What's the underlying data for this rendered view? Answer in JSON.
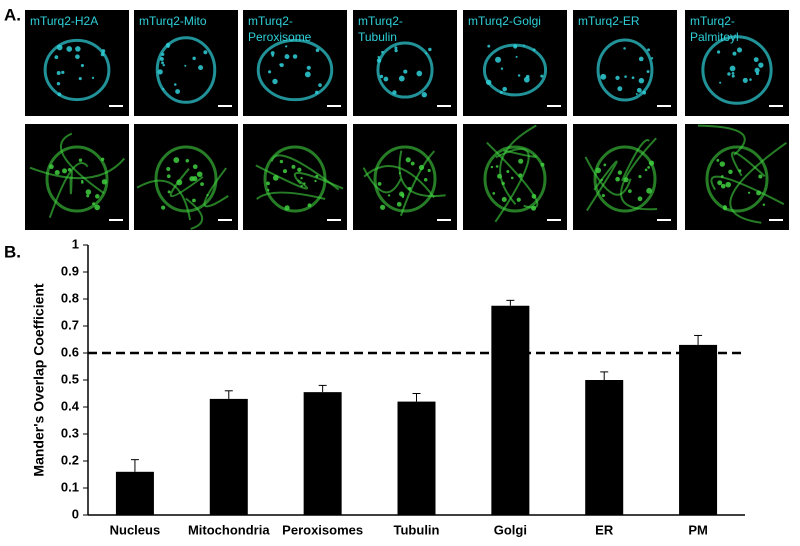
{
  "panel_a_label": "A.",
  "panel_b_label": "B.",
  "images": [
    {
      "label": [
        "mTurq2-H2A"
      ]
    },
    {
      "label": [
        "mTurq2-Mito"
      ]
    },
    {
      "label": [
        "mTurq2-",
        "Peroxisome"
      ]
    },
    {
      "label": [
        "mTurq2-",
        "Tubulin"
      ]
    },
    {
      "label": [
        "mTurq2-Golgi"
      ]
    },
    {
      "label": [
        "mTurq2-ER"
      ]
    },
    {
      "label": [
        "mTurq2-",
        "Palmitoyl"
      ]
    }
  ],
  "chart_data": {
    "type": "bar",
    "ylabel": "Mander's Overlap Coefficient",
    "categories": [
      "Nucleus",
      "Mitochondria",
      "Peroxisomes",
      "Tubulin",
      "Golgi",
      "ER",
      "PM"
    ],
    "values": [
      0.16,
      0.43,
      0.455,
      0.42,
      0.775,
      0.5,
      0.63
    ],
    "errors": [
      0.045,
      0.03,
      0.025,
      0.03,
      0.02,
      0.03,
      0.035
    ],
    "color": "#000000",
    "threshold": 0.6,
    "ylim": [
      0,
      1
    ],
    "yticks": [
      0,
      0.1,
      0.2,
      0.3,
      0.4,
      0.5,
      0.6,
      0.7,
      0.8,
      0.9,
      1
    ],
    "grid": false
  }
}
